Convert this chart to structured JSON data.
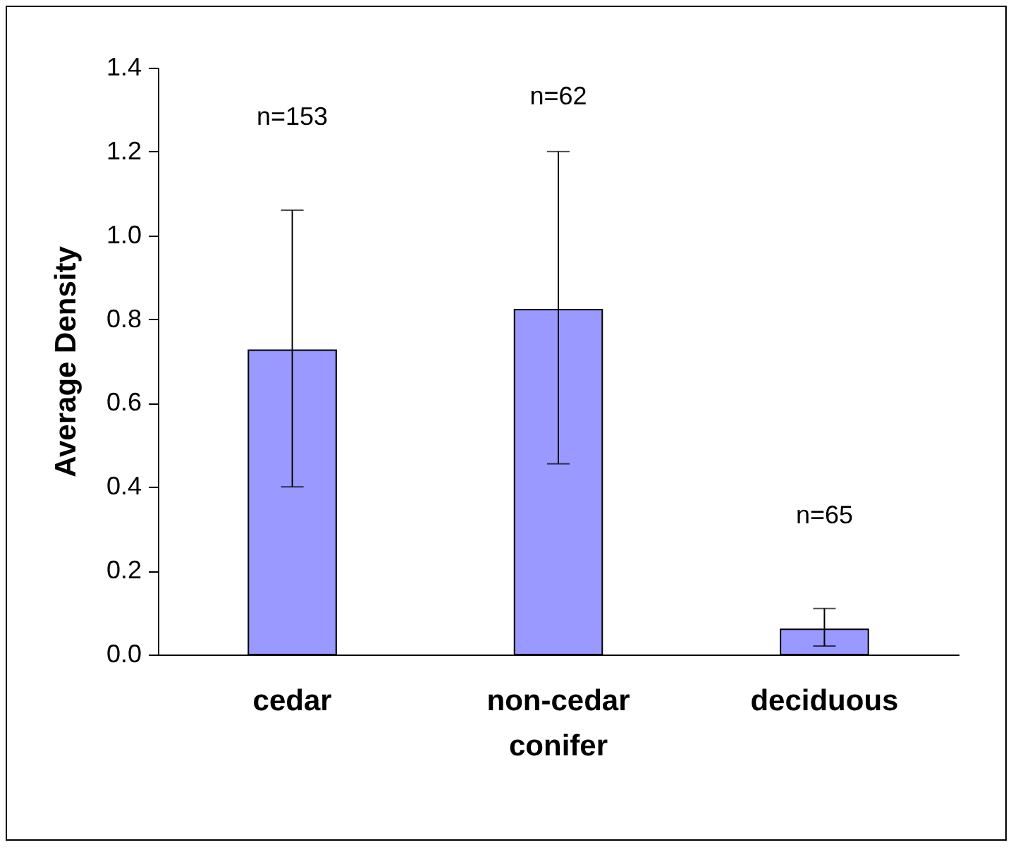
{
  "chart_data": {
    "type": "bar",
    "ylabel": "Average Density",
    "categories": [
      "cedar",
      "non-cedar conifer",
      "deciduous"
    ],
    "values": [
      0.726,
      0.823,
      0.06
    ],
    "color": "#9999ff",
    "errors": [
      [
        0.4,
        1.06
      ],
      [
        0.455,
        1.2
      ],
      [
        0.02,
        0.11
      ]
    ],
    "ylim": [
      0,
      1.4
    ],
    "yticks": [
      {
        "value": 0,
        "label": "0.0"
      },
      0.2,
      0.4,
      0.6,
      0.8,
      {
        "value": 1,
        "label": "1.0"
      },
      1.2,
      1.4
    ],
    "annotations": [
      "n=153",
      "n=62",
      "n=65"
    ]
  }
}
